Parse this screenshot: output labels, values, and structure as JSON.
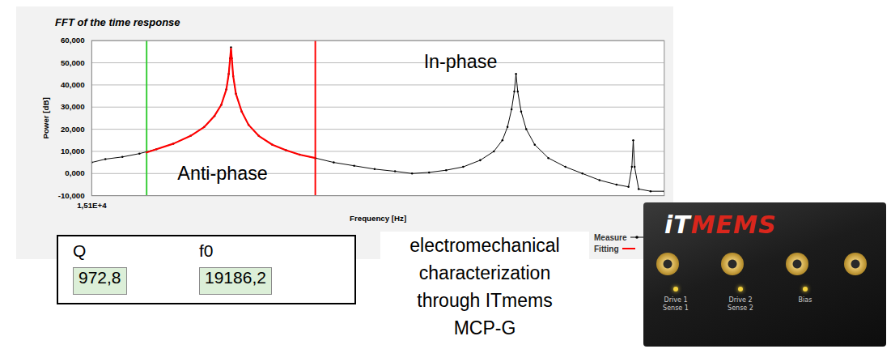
{
  "chart_data": {
    "type": "line",
    "title": "FFT of the time response",
    "x_label": "Frequency [Hz]",
    "y_label": "Power [dB]",
    "xlim": [
      15100,
      31900
    ],
    "xticks": [
      {
        "value": 15100,
        "label": "1,51E+4"
      }
    ],
    "ylim": [
      -10,
      60
    ],
    "yticks": [
      {
        "value": -10,
        "label": "-10,000"
      },
      {
        "value": 0,
        "label": "0,000"
      },
      {
        "value": 10,
        "label": "10,000"
      },
      {
        "value": 20,
        "label": "20,000"
      },
      {
        "value": 30,
        "label": "30,000"
      },
      {
        "value": 40,
        "label": "40,000"
      },
      {
        "value": 50,
        "label": "50,000"
      },
      {
        "value": 60,
        "label": "60,000"
      }
    ],
    "grid": true,
    "legend": "bottom-right",
    "series": [
      {
        "name": "Measure",
        "color": "#000000",
        "marker": "dot",
        "line_style": "solid",
        "x": [
          15100,
          15500,
          16000,
          16500,
          17000,
          17500,
          18000,
          18400,
          18700,
          18900,
          19050,
          19120,
          19160,
          19186,
          19210,
          19250,
          19330,
          19500,
          19700,
          20000,
          20400,
          20800,
          21200,
          21660,
          22200,
          22800,
          23400,
          24000,
          24500,
          25000,
          25500,
          26000,
          26500,
          26900,
          27150,
          27300,
          27420,
          27500,
          27550,
          27600,
          27700,
          27850,
          28100,
          28500,
          29000,
          29500,
          30000,
          30500,
          30850,
          30950,
          30990,
          31030,
          31150,
          31500,
          31900
        ],
        "values": [
          5,
          6.5,
          7.5,
          9,
          11,
          13.5,
          17,
          21,
          26,
          31,
          38,
          45,
          52,
          57,
          52,
          44,
          36,
          28,
          22,
          17,
          13,
          10.5,
          8.5,
          7,
          5,
          3.5,
          2,
          1,
          0,
          0.5,
          1.5,
          3,
          6,
          10,
          15,
          21,
          29,
          37,
          45,
          37,
          28,
          20,
          13,
          7,
          3,
          0,
          -3,
          -5,
          -6,
          3,
          15,
          3,
          -7,
          -8,
          -8
        ]
      },
      {
        "name": "Fitting",
        "color": "#ff0000",
        "line_style": "solid",
        "x": [
          16710,
          17000,
          17500,
          18000,
          18400,
          18700,
          18900,
          19050,
          19120,
          19160,
          19186,
          19210,
          19250,
          19330,
          19500,
          19700,
          20000,
          20400,
          20800,
          21200,
          21660
        ],
        "values": [
          9.5,
          11,
          13.5,
          17,
          21,
          26,
          31,
          38,
          45,
          52,
          56.5,
          52,
          44,
          36,
          28,
          22,
          17,
          13,
          10.5,
          8.5,
          7
        ]
      }
    ],
    "cursors": [
      {
        "x": 16710,
        "color": "#33cc33"
      },
      {
        "x": 21660,
        "color": "#ff0000"
      }
    ],
    "annotations": [
      {
        "text": "Anti-phase",
        "x": 18940,
        "y": 0
      },
      {
        "text": "In-phase",
        "x": 25920,
        "y": 50.5
      }
    ]
  },
  "results": {
    "items": [
      {
        "label": "Q",
        "value": "972,8"
      },
      {
        "label": "f0",
        "value": "19186,2"
      }
    ]
  },
  "caption": {
    "lines": [
      "electromechanical",
      "characterization",
      "through ITmems",
      "MCP-G"
    ]
  },
  "device": {
    "logo": [
      "iT",
      "MEMS"
    ],
    "labels": [
      [
        "Drive 1",
        "Sense 1"
      ],
      [
        "Drive 2",
        "Sense 2"
      ],
      [
        "Bias"
      ]
    ]
  }
}
